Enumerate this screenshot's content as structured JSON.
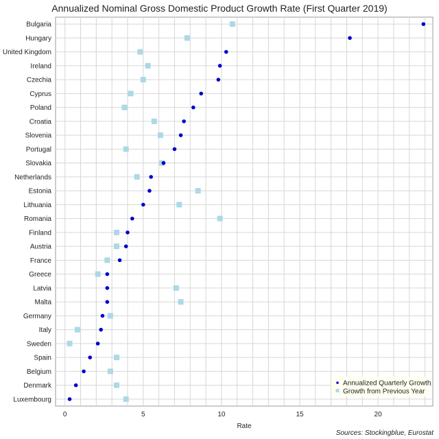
{
  "chart_data": {
    "type": "scatter",
    "title": "Annualized Nominal Gross Domestic Product Growth Rate (First Quarter 2019)",
    "xlabel": "Rate",
    "ylabel": "",
    "xlim": [
      -0.6,
      23.5
    ],
    "xticks": [
      0,
      5,
      10,
      15,
      20
    ],
    "grid": true,
    "legend_position": "bottom-right",
    "categories": [
      "Bulgaria",
      "Hungary",
      "United Kingdom",
      "Ireland",
      "Czechia",
      "Cyprus",
      "Poland",
      "Croatia",
      "Slovenia",
      "Portugal",
      "Slovakia",
      "Netherlands",
      "Estonia",
      "Lithuania",
      "Romania",
      "Finland",
      "Austria",
      "France",
      "Greece",
      "Latvia",
      "Malta",
      "Germany",
      "Italy",
      "Sweden",
      "Spain",
      "Belgium",
      "Denmark",
      "Luxembourg"
    ],
    "series": [
      {
        "name": "Annualized Quarterly Growth",
        "color": "#0000cd",
        "marker": "circle",
        "values": [
          22.9,
          18.2,
          10.3,
          9.9,
          9.8,
          8.7,
          8.2,
          7.6,
          7.4,
          7.0,
          6.3,
          5.5,
          5.4,
          5.0,
          4.3,
          4.0,
          3.9,
          3.5,
          2.7,
          2.7,
          2.7,
          2.4,
          2.3,
          2.1,
          1.6,
          1.2,
          0.7,
          0.3
        ]
      },
      {
        "name": "Growth from Previous Year",
        "color": "#add8e6",
        "marker": "square",
        "values": [
          10.7,
          7.8,
          4.8,
          5.3,
          5.0,
          4.2,
          3.8,
          5.7,
          6.1,
          3.9,
          6.2,
          4.6,
          8.5,
          7.3,
          9.9,
          3.3,
          3.3,
          2.7,
          2.1,
          7.1,
          7.4,
          2.9,
          0.8,
          0.3,
          3.3,
          2.9,
          3.3,
          3.9
        ]
      }
    ]
  },
  "source_note": "Sources: Stockingblue, Eurostat"
}
